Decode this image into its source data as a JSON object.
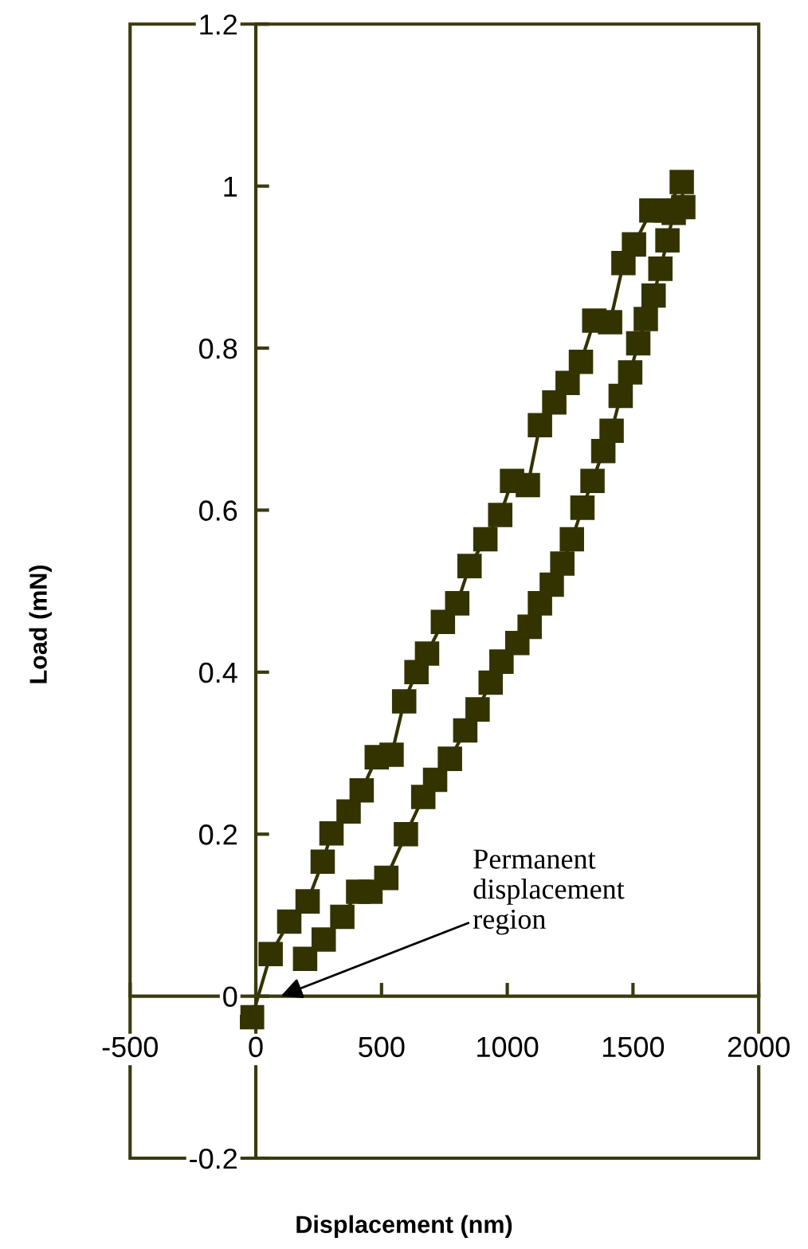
{
  "chart_data": {
    "type": "line",
    "xlabel": "Displacement (nm)",
    "ylabel": "Load (mN)",
    "xlim": [
      -500,
      2000
    ],
    "xticks": [
      -500,
      0,
      500,
      1000,
      1500,
      2000
    ],
    "ylim": [
      -0.2,
      1.2
    ],
    "yticks": [
      -0.2,
      0,
      0.2,
      0.4,
      0.6,
      0.8,
      1,
      1.2
    ],
    "grid": false,
    "legend": false,
    "marker": "square",
    "line_style": "solid",
    "annotations": [
      "Permanent\ndisplacement\nregion"
    ],
    "series": [
      {
        "color": "#333300",
        "x": [
          -15,
          59,
          133,
          206,
          266,
          301,
          369,
          421,
          481,
          540,
          590,
          639,
          681,
          744,
          801,
          850,
          913,
          972,
          1019,
          1082,
          1130,
          1187,
          1240,
          1293,
          1346,
          1409,
          1462,
          1504,
          1573,
          1630,
          1694,
          1700,
          1662,
          1637,
          1609,
          1582,
          1551,
          1521,
          1489,
          1451,
          1415,
          1382,
          1339,
          1299,
          1257,
          1219,
          1177,
          1130,
          1089,
          1040,
          977,
          934,
          882,
          833,
          772,
          713,
          666,
          597,
          519,
          456,
          407,
          344,
          270,
          196
        ],
        "values": [
          -0.026,
          0.052,
          0.092,
          0.117,
          0.166,
          0.201,
          0.228,
          0.254,
          0.295,
          0.298,
          0.364,
          0.4,
          0.423,
          0.462,
          0.485,
          0.531,
          0.564,
          0.594,
          0.636,
          0.631,
          0.705,
          0.733,
          0.757,
          0.783,
          0.834,
          0.832,
          0.905,
          0.928,
          0.97,
          0.97,
          1.005,
          0.974,
          0.967,
          0.933,
          0.898,
          0.865,
          0.836,
          0.806,
          0.77,
          0.741,
          0.698,
          0.673,
          0.636,
          0.603,
          0.564,
          0.534,
          0.508,
          0.485,
          0.456,
          0.436,
          0.413,
          0.387,
          0.354,
          0.328,
          0.293,
          0.267,
          0.246,
          0.2,
          0.146,
          0.129,
          0.129,
          0.098,
          0.07,
          0.046
        ]
      }
    ]
  }
}
